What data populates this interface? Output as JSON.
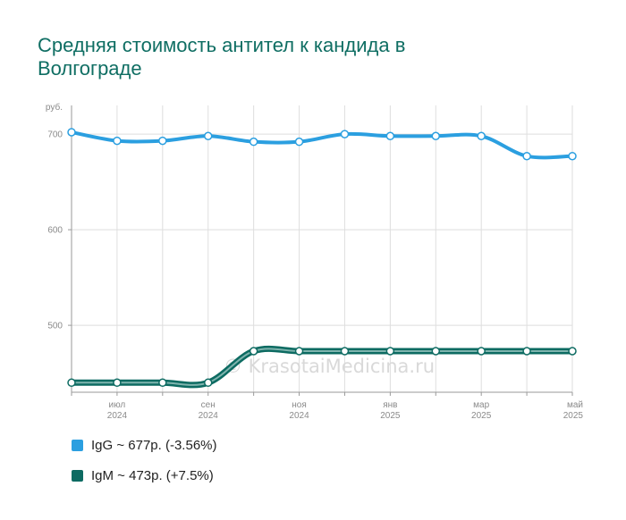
{
  "chart_data": {
    "type": "line",
    "title": "Средняя стоимость антител к кандида в Волгограде",
    "unit_label": "руб.",
    "ylim": [
      430,
      730
    ],
    "yticks": [
      500,
      600,
      700
    ],
    "xlim": [
      0,
      11
    ],
    "x_ticks": [
      {
        "x": 1,
        "month": "июл",
        "year": "2024"
      },
      {
        "x": 3,
        "month": "сен",
        "year": "2024"
      },
      {
        "x": 5,
        "month": "ноя",
        "year": "2024"
      },
      {
        "x": 7,
        "month": "янв",
        "year": "2025"
      },
      {
        "x": 9,
        "month": "мар",
        "year": "2025"
      },
      {
        "x": 11,
        "month": "май",
        "year": "2025"
      }
    ],
    "grid": true,
    "legend_position": "bottom-left",
    "series": [
      {
        "name": "IgG",
        "color": "#2b9fe0",
        "legend_label": "IgG ~ 677р. (-3.56%)",
        "x": [
          0,
          1,
          2,
          3,
          4,
          5,
          6,
          7,
          8,
          9,
          10,
          11
        ],
        "values": [
          702,
          693,
          693,
          698,
          692,
          692,
          700,
          698,
          698,
          698,
          677,
          677
        ]
      },
      {
        "name": "IgM",
        "color": "#0d6b62",
        "legend_label": "IgM ~ 473р. (+7.5%)",
        "x": [
          0,
          1,
          2,
          3,
          4,
          5,
          6,
          7,
          8,
          9,
          10,
          11
        ],
        "values": [
          440,
          440,
          440,
          440,
          473,
          473,
          473,
          473,
          473,
          473,
          473,
          473
        ]
      }
    ]
  },
  "watermark": "© KrasotaiMedicina.ru"
}
